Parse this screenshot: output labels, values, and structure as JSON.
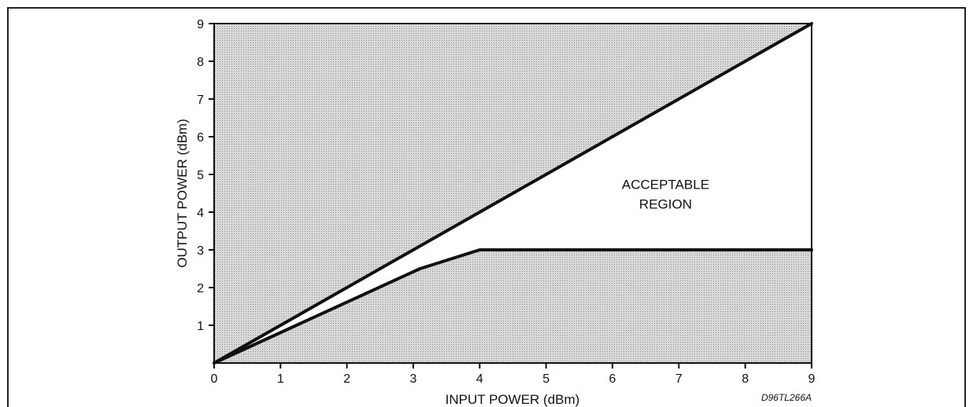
{
  "chart_data": {
    "type": "area",
    "xlabel": "INPUT POWER (dBm)",
    "ylabel": "OUTPUT POWER (dBm)",
    "xlim": [
      0,
      9
    ],
    "ylim": [
      0,
      9
    ],
    "x_ticks": [
      0,
      1,
      2,
      3,
      4,
      5,
      6,
      7,
      8,
      9
    ],
    "y_ticks": [
      1,
      2,
      3,
      4,
      5,
      6,
      7,
      8,
      9
    ],
    "grid": false,
    "regions": [
      {
        "shaded": true,
        "points": [
          [
            0,
            0
          ],
          [
            9,
            9
          ],
          [
            0,
            9
          ]
        ]
      },
      {
        "shaded": true,
        "points": [
          [
            0,
            0
          ],
          [
            9,
            0
          ],
          [
            9,
            3
          ],
          [
            4,
            3
          ],
          [
            3.1,
            2.5
          ]
        ]
      }
    ],
    "lines": [
      {
        "points": [
          [
            0,
            0
          ],
          [
            9,
            9
          ]
        ]
      },
      {
        "points": [
          [
            0,
            0
          ],
          [
            3.1,
            2.5
          ],
          [
            4,
            3
          ],
          [
            9,
            3
          ]
        ]
      }
    ],
    "annotations": [
      {
        "text_lines": [
          "ACCEPTABLE",
          "REGION"
        ],
        "x": 6.8,
        "y": 4.2
      }
    ],
    "figure_id": "D96TL266A",
    "colors": {
      "shade": "#d9d9d9",
      "stipple": "#8c8c8c",
      "line": "#111111",
      "frame": "#222222"
    }
  }
}
